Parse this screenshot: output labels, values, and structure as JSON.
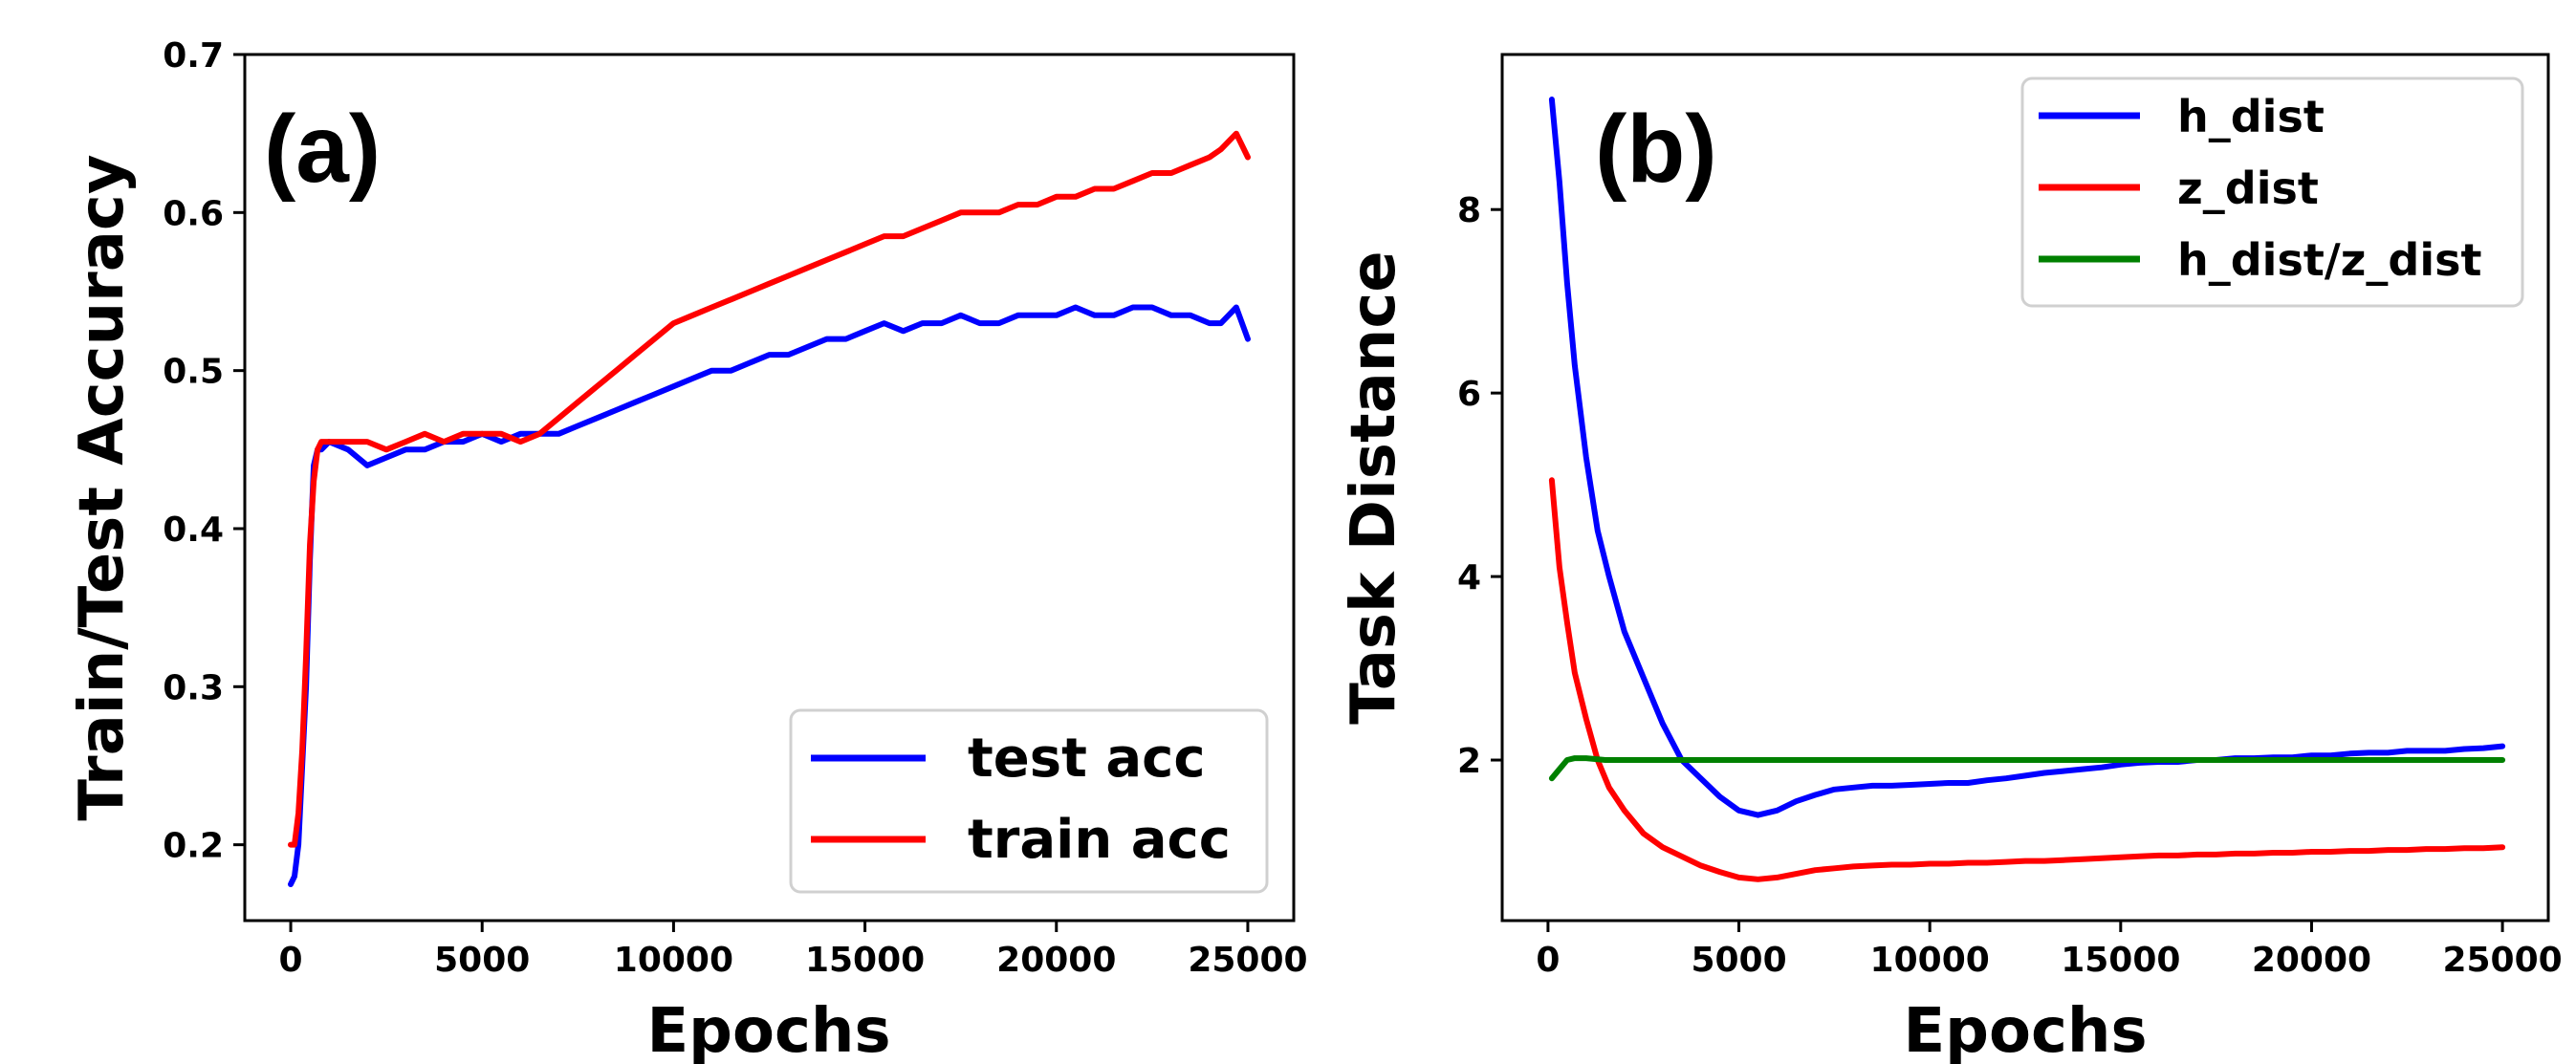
{
  "chart_data": [
    {
      "type": "line",
      "panel_label": "(a)",
      "xlabel": "Epochs",
      "ylabel": "Train/Test Accuracy",
      "xlim": [
        -1200,
        26200
      ],
      "ylim": [
        0.152,
        0.7
      ],
      "xticks": [
        0,
        5000,
        10000,
        15000,
        20000,
        25000
      ],
      "xtick_labels": [
        "0",
        "5000",
        "10000",
        "15000",
        "20000",
        "25000"
      ],
      "yticks": [
        0.2,
        0.3,
        0.4,
        0.5,
        0.6,
        0.7
      ],
      "ytick_labels": [
        "0.2",
        "0.3",
        "0.4",
        "0.5",
        "0.6",
        "0.7"
      ],
      "grid": false,
      "legend_position": "bottom-right",
      "series": [
        {
          "name": "test acc",
          "color": "#0000ff",
          "x": [
            0,
            100,
            200,
            300,
            400,
            500,
            600,
            700,
            800,
            1000,
            1500,
            2000,
            2500,
            3000,
            3500,
            4000,
            4500,
            5000,
            5500,
            6000,
            6500,
            7000,
            7500,
            8000,
            8500,
            9000,
            9500,
            10000,
            10500,
            11000,
            11500,
            12000,
            12500,
            13000,
            13500,
            14000,
            14500,
            15000,
            15500,
            16000,
            16500,
            17000,
            17500,
            18000,
            18500,
            19000,
            19500,
            20000,
            20500,
            21000,
            21500,
            22000,
            22500,
            23000,
            23500,
            24000,
            24300,
            24500,
            24700,
            25000
          ],
          "y": [
            0.175,
            0.18,
            0.2,
            0.25,
            0.3,
            0.38,
            0.44,
            0.45,
            0.45,
            0.455,
            0.45,
            0.44,
            0.445,
            0.45,
            0.45,
            0.455,
            0.455,
            0.46,
            0.455,
            0.46,
            0.46,
            0.46,
            0.465,
            0.47,
            0.475,
            0.48,
            0.485,
            0.49,
            0.495,
            0.5,
            0.5,
            0.505,
            0.51,
            0.51,
            0.515,
            0.52,
            0.52,
            0.525,
            0.53,
            0.525,
            0.53,
            0.53,
            0.535,
            0.53,
            0.53,
            0.535,
            0.535,
            0.535,
            0.54,
            0.535,
            0.535,
            0.54,
            0.54,
            0.535,
            0.535,
            0.53,
            0.53,
            0.535,
            0.54,
            0.52
          ]
        },
        {
          "name": "train acc",
          "color": "#ff0000",
          "x": [
            0,
            100,
            200,
            300,
            400,
            500,
            600,
            700,
            800,
            1000,
            1500,
            2000,
            2500,
            3000,
            3500,
            4000,
            4500,
            5000,
            5500,
            6000,
            6500,
            7000,
            7500,
            8000,
            8500,
            9000,
            9500,
            10000,
            10500,
            11000,
            11500,
            12000,
            12500,
            13000,
            13500,
            14000,
            14500,
            15000,
            15500,
            16000,
            16500,
            17000,
            17500,
            18000,
            18500,
            19000,
            19500,
            20000,
            20500,
            21000,
            21500,
            22000,
            22500,
            23000,
            23500,
            24000,
            24300,
            24500,
            24700,
            25000
          ],
          "y": [
            0.2,
            0.2,
            0.22,
            0.26,
            0.32,
            0.39,
            0.43,
            0.45,
            0.455,
            0.455,
            0.455,
            0.455,
            0.45,
            0.455,
            0.46,
            0.455,
            0.46,
            0.46,
            0.46,
            0.455,
            0.46,
            0.47,
            0.48,
            0.49,
            0.5,
            0.51,
            0.52,
            0.53,
            0.535,
            0.54,
            0.545,
            0.55,
            0.555,
            0.56,
            0.565,
            0.57,
            0.575,
            0.58,
            0.585,
            0.585,
            0.59,
            0.595,
            0.6,
            0.6,
            0.6,
            0.605,
            0.605,
            0.61,
            0.61,
            0.615,
            0.615,
            0.62,
            0.625,
            0.625,
            0.63,
            0.635,
            0.64,
            0.645,
            0.65,
            0.635
          ]
        }
      ]
    },
    {
      "type": "line",
      "panel_label": "(b)",
      "xlabel": "Epochs",
      "ylabel": "Task Distance",
      "xlim": [
        -1200,
        26200
      ],
      "ylim": [
        0.25,
        9.69
      ],
      "xticks": [
        0,
        5000,
        10000,
        15000,
        20000,
        25000
      ],
      "xtick_labels": [
        "0",
        "5000",
        "10000",
        "15000",
        "20000",
        "25000"
      ],
      "yticks": [
        2,
        4,
        6,
        8
      ],
      "ytick_labels": [
        "2",
        "4",
        "6",
        "8"
      ],
      "grid": false,
      "legend_position": "top-right",
      "series": [
        {
          "name": "h_dist",
          "color": "#0000ff",
          "x": [
            100,
            300,
            500,
            700,
            1000,
            1300,
            1600,
            2000,
            2500,
            3000,
            3500,
            4000,
            4500,
            5000,
            5500,
            6000,
            6500,
            7000,
            7500,
            8000,
            8500,
            9000,
            9500,
            10000,
            10500,
            11000,
            11500,
            12000,
            12500,
            13000,
            13500,
            14000,
            14500,
            15000,
            15500,
            16000,
            16500,
            17000,
            17500,
            18000,
            18500,
            19000,
            19500,
            20000,
            20500,
            21000,
            21500,
            22000,
            22500,
            23000,
            23500,
            24000,
            24500,
            25000
          ],
          "y": [
            9.2,
            8.3,
            7.2,
            6.3,
            5.3,
            4.5,
            4.0,
            3.4,
            2.9,
            2.4,
            2.0,
            1.8,
            1.6,
            1.45,
            1.4,
            1.45,
            1.55,
            1.62,
            1.68,
            1.7,
            1.72,
            1.72,
            1.73,
            1.74,
            1.75,
            1.75,
            1.78,
            1.8,
            1.83,
            1.86,
            1.88,
            1.9,
            1.92,
            1.95,
            1.97,
            1.98,
            1.98,
            2.0,
            2.0,
            2.02,
            2.02,
            2.03,
            2.03,
            2.05,
            2.05,
            2.07,
            2.08,
            2.08,
            2.1,
            2.1,
            2.1,
            2.12,
            2.13,
            2.15
          ]
        },
        {
          "name": "z_dist",
          "color": "#ff0000",
          "x": [
            100,
            300,
            500,
            700,
            1000,
            1300,
            1600,
            2000,
            2500,
            3000,
            3500,
            4000,
            4500,
            5000,
            5500,
            6000,
            6500,
            7000,
            7500,
            8000,
            8500,
            9000,
            9500,
            10000,
            10500,
            11000,
            11500,
            12000,
            12500,
            13000,
            13500,
            14000,
            14500,
            15000,
            15500,
            16000,
            16500,
            17000,
            17500,
            18000,
            18500,
            19000,
            19500,
            20000,
            20500,
            21000,
            21500,
            22000,
            22500,
            23000,
            23500,
            24000,
            24500,
            25000
          ],
          "y": [
            5.05,
            4.1,
            3.5,
            2.95,
            2.45,
            2.0,
            1.7,
            1.45,
            1.2,
            1.05,
            0.95,
            0.85,
            0.78,
            0.72,
            0.7,
            0.72,
            0.76,
            0.8,
            0.82,
            0.84,
            0.85,
            0.86,
            0.86,
            0.87,
            0.87,
            0.88,
            0.88,
            0.89,
            0.9,
            0.9,
            0.91,
            0.92,
            0.93,
            0.94,
            0.95,
            0.96,
            0.96,
            0.97,
            0.97,
            0.98,
            0.98,
            0.99,
            0.99,
            1.0,
            1.0,
            1.01,
            1.01,
            1.02,
            1.02,
            1.03,
            1.03,
            1.04,
            1.04,
            1.05
          ]
        },
        {
          "name": "h_dist/z_dist",
          "color": "#008000",
          "x": [
            100,
            300,
            500,
            700,
            1000,
            1500,
            2000,
            3000,
            4000,
            5000,
            6000,
            7000,
            8000,
            9000,
            10000,
            11000,
            12000,
            13000,
            14000,
            15000,
            16000,
            17000,
            18000,
            19000,
            20000,
            21000,
            22000,
            23000,
            24000,
            25000
          ],
          "y": [
            1.8,
            1.9,
            2.0,
            2.02,
            2.02,
            2.0,
            2.0,
            2.0,
            2.0,
            2.0,
            2.0,
            2.0,
            2.0,
            2.0,
            2.0,
            2.0,
            2.0,
            2.0,
            2.0,
            2.0,
            2.0,
            2.0,
            2.0,
            2.0,
            2.0,
            2.0,
            2.0,
            2.0,
            2.0,
            2.0
          ]
        }
      ]
    }
  ]
}
